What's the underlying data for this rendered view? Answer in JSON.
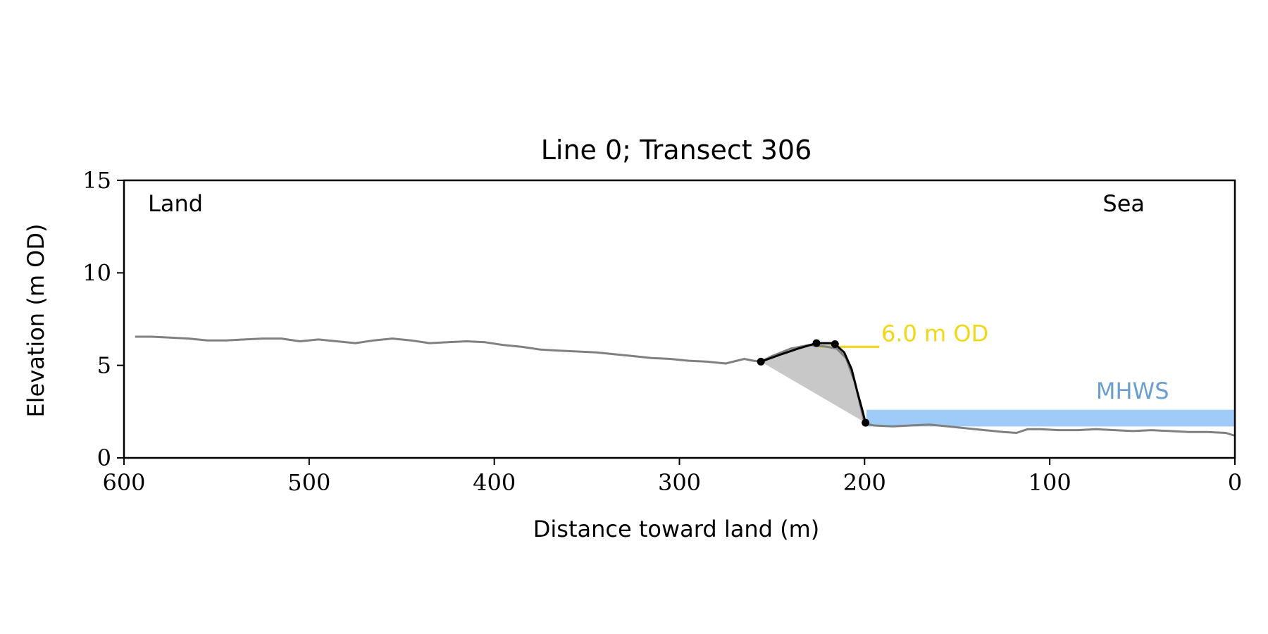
{
  "chart_data": {
    "type": "line",
    "title": "Line 0; Transect 306",
    "xlabel": "Distance toward land (m)",
    "ylabel": "Elevation (m OD)",
    "xlim": [
      600,
      0
    ],
    "ylim": [
      0,
      15
    ],
    "x_inverted": true,
    "xticks": [
      600,
      500,
      400,
      300,
      200,
      100,
      0
    ],
    "yticks": [
      0,
      5,
      10,
      15
    ],
    "grid": false,
    "region_labels": {
      "left": "Land",
      "right": "Sea"
    },
    "annotations": [
      {
        "text": "6.0 m OD",
        "color": "#f2d716",
        "at": {
          "x": 191,
          "y": 6.3
        }
      },
      {
        "text": "MHWS",
        "color": "#6b9fcf",
        "at": {
          "x": 75,
          "y": 3.2
        }
      }
    ],
    "reference_lines": [
      {
        "label": "6.0 m OD",
        "y": 6.0,
        "x_range": [
          225,
          192
        ],
        "color": "#f2d716"
      }
    ],
    "mhws_band": {
      "label": "MHWS",
      "x_range": [
        199,
        0
      ],
      "y_range": [
        1.7,
        2.6
      ],
      "color": "#9ecbf7"
    },
    "profile_series": {
      "name": "",
      "color": "#808080",
      "x": [
        594,
        585,
        575,
        565,
        555,
        545,
        535,
        525,
        515,
        505,
        495,
        485,
        475,
        465,
        455,
        445,
        435,
        425,
        415,
        405,
        395,
        385,
        375,
        365,
        355,
        345,
        335,
        325,
        315,
        305,
        295,
        285,
        275,
        265,
        260,
        256,
        250,
        240,
        230,
        220,
        215,
        210,
        205,
        200,
        195,
        185,
        175,
        165,
        155,
        145,
        135,
        125,
        118,
        112,
        105,
        95,
        85,
        75,
        65,
        55,
        45,
        35,
        25,
        15,
        5,
        0
      ],
      "y": [
        6.55,
        6.55,
        6.5,
        6.45,
        6.35,
        6.35,
        6.4,
        6.45,
        6.45,
        6.3,
        6.4,
        6.3,
        6.2,
        6.35,
        6.45,
        6.35,
        6.2,
        6.25,
        6.3,
        6.25,
        6.1,
        6.0,
        5.85,
        5.8,
        5.75,
        5.7,
        5.6,
        5.5,
        5.4,
        5.35,
        5.25,
        5.2,
        5.1,
        5.35,
        5.25,
        5.2,
        5.5,
        5.9,
        6.1,
        6.0,
        5.9,
        5.4,
        4.0,
        1.85,
        1.75,
        1.7,
        1.75,
        1.8,
        1.7,
        1.6,
        1.5,
        1.4,
        1.35,
        1.55,
        1.55,
        1.5,
        1.5,
        1.55,
        1.5,
        1.45,
        1.5,
        1.45,
        1.4,
        1.4,
        1.35,
        1.2
      ]
    },
    "fill_region": {
      "color": "#c8c8c8",
      "upper": {
        "x": [
          256,
          245,
          236,
          226,
          218,
          216,
          211,
          207,
          204,
          201,
          199.5
        ],
        "y": [
          5.2,
          5.6,
          5.9,
          6.2,
          6.2,
          6.15,
          5.7,
          4.8,
          3.6,
          2.5,
          1.9
        ]
      },
      "lower": {
        "x": [
          256,
          199.5
        ],
        "y": [
          5.2,
          1.9
        ]
      }
    },
    "cliff_series": {
      "name": "",
      "color": "#000000",
      "x": [
        256,
        245,
        236,
        226,
        218,
        216,
        211,
        207,
        204,
        201,
        199.5
      ],
      "y": [
        5.2,
        5.6,
        5.9,
        6.2,
        6.2,
        6.15,
        5.7,
        4.8,
        3.6,
        2.5,
        1.9
      ]
    },
    "cliff_points": {
      "x": [
        256,
        226,
        216,
        199.5
      ],
      "y": [
        5.2,
        6.2,
        6.15,
        1.9
      ]
    }
  }
}
